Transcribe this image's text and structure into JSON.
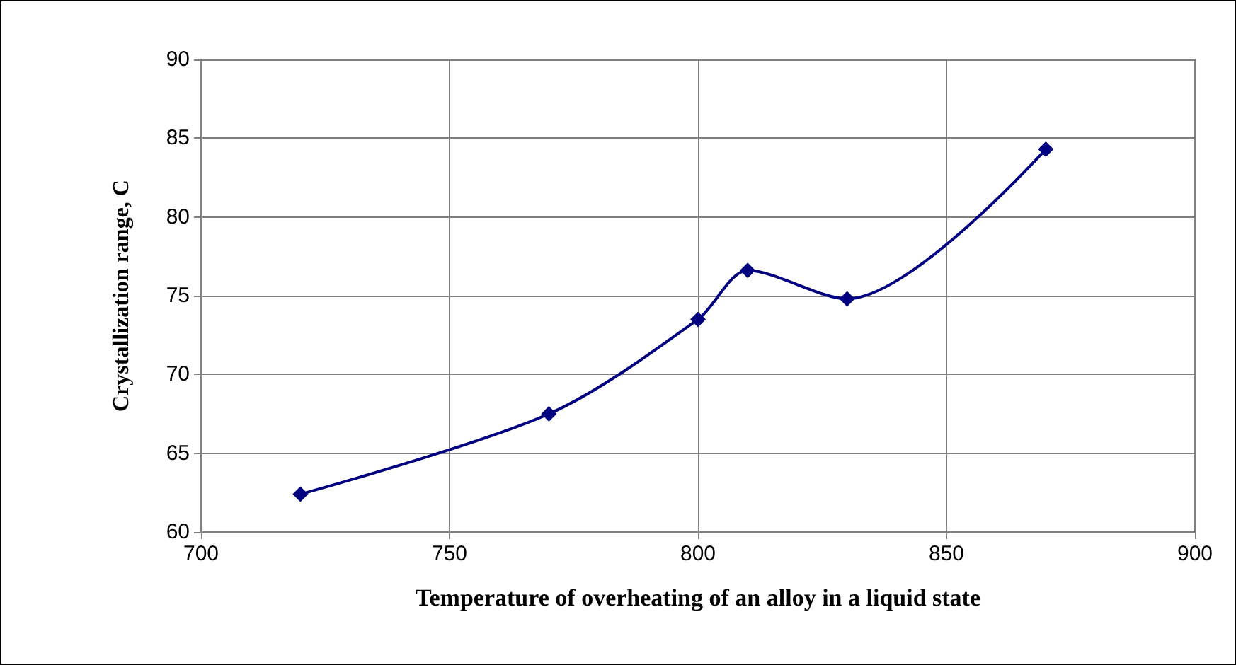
{
  "chart_data": {
    "type": "line",
    "xlabel": "Temperature of overheating of an alloy in a liquid state",
    "ylabel": "Crystallization range, C",
    "x": [
      720,
      770,
      800,
      810,
      830,
      870
    ],
    "series": [
      {
        "color": "#000080",
        "values": [
          62.4,
          67.5,
          73.5,
          76.6,
          74.8,
          84.3
        ]
      }
    ],
    "xlim": [
      700,
      900
    ],
    "xticks": [
      700,
      750,
      800,
      850,
      900
    ],
    "ylim": [
      60,
      90
    ],
    "yticks": [
      60,
      65,
      70,
      75,
      80,
      85,
      90
    ],
    "grid": true,
    "marker": "diamond",
    "line_style": "solid"
  }
}
